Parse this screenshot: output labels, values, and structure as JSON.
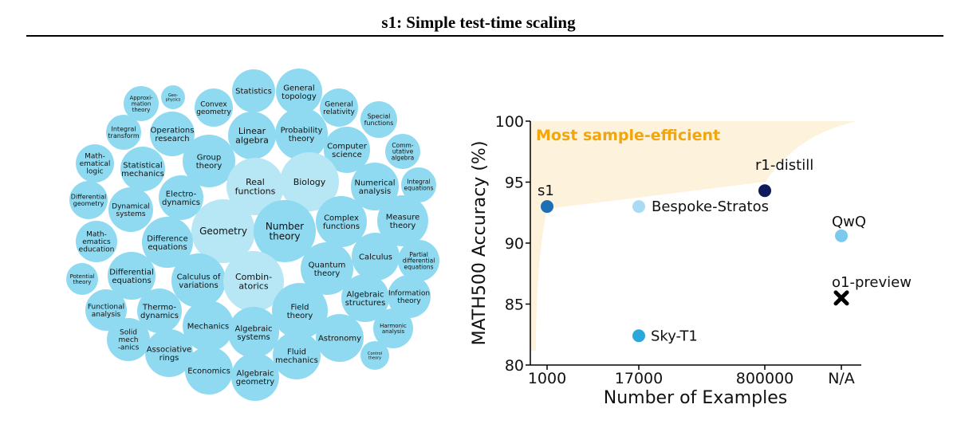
{
  "title": "s1: Simple test-time scaling",
  "bubbles": [
    {
      "label": "Approxi-\nmation\ntheory"
    },
    {
      "label": "Geo-\nphysics"
    },
    {
      "label": "Convex\ngeometry"
    },
    {
      "label": "Statistics"
    },
    {
      "label": "General\ntopology"
    },
    {
      "label": "General\nrelativity"
    },
    {
      "label": "Special\nfunctions"
    },
    {
      "label": "Integral\ntransform"
    },
    {
      "label": "Operations\nresearch"
    },
    {
      "label": "Linear\nalgebra"
    },
    {
      "label": "Probability\ntheory"
    },
    {
      "label": "Computer\nscience"
    },
    {
      "label": "Comm-\nutative\nalgebra"
    },
    {
      "label": "Math-\nematical\nlogic"
    },
    {
      "label": "Statistical\nmechanics"
    },
    {
      "label": "Group\ntheory"
    },
    {
      "label": "Real\nfunctions"
    },
    {
      "label": "Biology"
    },
    {
      "label": "Numerical\nanalysis"
    },
    {
      "label": "Integral\nequations"
    },
    {
      "label": "Differential\ngeometry"
    },
    {
      "label": "Dynamical\nsystems"
    },
    {
      "label": "Electro-\ndynamics"
    },
    {
      "label": "Geometry"
    },
    {
      "label": "Number\ntheory"
    },
    {
      "label": "Complex\nfunctions"
    },
    {
      "label": "Measure\ntheory"
    },
    {
      "label": "Math-\nematics\neducation"
    },
    {
      "label": "Difference\nequations"
    },
    {
      "label": "Calculus"
    },
    {
      "label": "Partial\ndifferential\nequations"
    },
    {
      "label": "Quantum\ntheory"
    },
    {
      "label": "Potential\ntheory"
    },
    {
      "label": "Differential\nequations"
    },
    {
      "label": "Calculus of\nvariations"
    },
    {
      "label": "Combin-\natorics"
    },
    {
      "label": "Algebraic\nstructures"
    },
    {
      "label": "Information\ntheory"
    },
    {
      "label": "Functional\nanalysis"
    },
    {
      "label": "Thermo-\ndynamics"
    },
    {
      "label": "Mechanics"
    },
    {
      "label": "Algebraic\nsystems"
    },
    {
      "label": "Field\ntheory"
    },
    {
      "label": "Solid\nmech\n-anics"
    },
    {
      "label": "Associative\nrings"
    },
    {
      "label": "Astronomy"
    },
    {
      "label": "Harmonic\nanalysis"
    },
    {
      "label": "Fluid\nmechanics"
    },
    {
      "label": "Control\ntheory"
    },
    {
      "label": "Economics"
    },
    {
      "label": "Algebraic\ngeometry"
    }
  ],
  "chart_data": {
    "type": "scatter",
    "xlabel": "Number of Examples",
    "ylabel": "MATH500 Accuracy (%)",
    "x_ticks": [
      "1000",
      "17000",
      "800000",
      "N/A"
    ],
    "ylim": [
      80,
      100
    ],
    "y_ticks": [
      80,
      85,
      90,
      95,
      100
    ],
    "annotation": "Most sample-efficient",
    "points": [
      {
        "label": "s1",
        "x": "1000",
        "y": 93.0,
        "color": "#1f6fb5",
        "marker": "circle"
      },
      {
        "label": "Bespoke-Stratos",
        "x": "17000",
        "y": 93.0,
        "color": "#a9dcf3",
        "marker": "circle"
      },
      {
        "label": "r1-distill",
        "x": "800000",
        "y": 94.3,
        "color": "#0d1b5c",
        "marker": "circle"
      },
      {
        "label": "QwQ",
        "x": "N/A",
        "y": 90.6,
        "color": "#7cc9ee",
        "marker": "circle"
      },
      {
        "label": "o1-preview",
        "x": "N/A",
        "y": 85.5,
        "color": "#000000",
        "marker": "x"
      },
      {
        "label": "Sky-T1",
        "x": "17000",
        "y": 82.4,
        "color": "#2aa8dc",
        "marker": "circle"
      }
    ]
  },
  "colors": {
    "bubble": "#8fdaf0",
    "bubble_light": "#b7e6f5",
    "shade": "#fdf3dc",
    "accent": "#f2a60c"
  }
}
